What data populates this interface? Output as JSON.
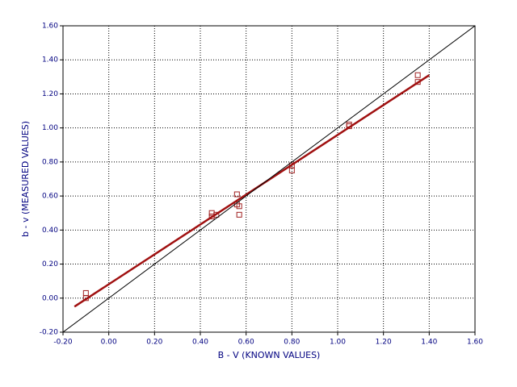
{
  "chart_data": {
    "type": "scatter",
    "xlabel": "B - V (KNOWN VALUES)",
    "ylabel": "b - v (MEASURED VALUES)",
    "xlim": [
      -0.2,
      1.6
    ],
    "ylim": [
      -0.2,
      1.6
    ],
    "xticks": [
      {
        "value": -0.2,
        "label": "-0.20"
      },
      {
        "value": 0,
        "label": "0.00"
      },
      {
        "value": 0.2,
        "label": "0.20"
      },
      {
        "value": 0.4,
        "label": "0.40"
      },
      {
        "value": 0.6,
        "label": "0.60"
      },
      {
        "value": 0.8,
        "label": "0.80"
      },
      {
        "value": 1,
        "label": "1.00"
      },
      {
        "value": 1.2,
        "label": "1.20"
      },
      {
        "value": 1.4,
        "label": "1.40"
      },
      {
        "value": 1.6,
        "label": "1.60"
      }
    ],
    "yticks": [
      {
        "value": -0.2,
        "label": "-0.20"
      },
      {
        "value": 0,
        "label": "0.00"
      },
      {
        "value": 0.2,
        "label": "0.20"
      },
      {
        "value": 0.4,
        "label": "0.40"
      },
      {
        "value": 0.6,
        "label": "0.60"
      },
      {
        "value": 0.8,
        "label": "0.80"
      },
      {
        "value": 1,
        "label": "1.00"
      },
      {
        "value": 1.2,
        "label": "1.20"
      },
      {
        "value": 1.4,
        "label": "1.40"
      },
      {
        "value": 1.6,
        "label": "1.60"
      }
    ],
    "grid": true,
    "series": [
      {
        "type": "scatter",
        "color": "#a02020",
        "x": [
          -0.1,
          -0.1,
          0.45,
          0.45,
          0.47,
          0.56,
          0.56,
          0.57,
          0.57,
          0.8,
          0.8,
          1.05,
          1.05,
          1.35,
          1.35
        ],
        "values": [
          0.03,
          0.0,
          0.5,
          0.48,
          0.49,
          0.61,
          0.55,
          0.54,
          0.49,
          0.78,
          0.75,
          1.02,
          1.01,
          1.31,
          1.27
        ]
      },
      {
        "type": "line",
        "color": "#a01010",
        "x": [
          -0.15,
          1.4
        ],
        "values": [
          -0.05,
          1.31
        ]
      },
      {
        "type": "line",
        "color": "#000000",
        "x": [
          -0.2,
          1.6
        ],
        "values": [
          -0.2,
          1.6
        ]
      }
    ]
  }
}
